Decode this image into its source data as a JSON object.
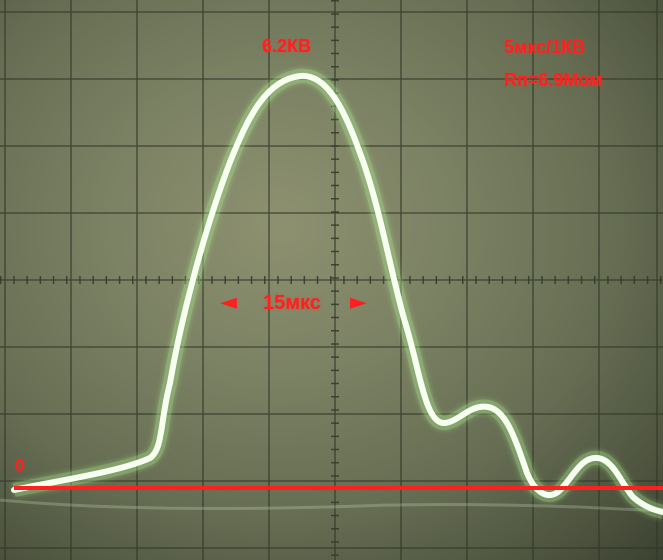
{
  "labels": {
    "peak_voltage": "6.2КВ",
    "timebase_scale": "5мкс/1КВ",
    "resistance": "Rп=6.9Мом",
    "pulse_width": "15мкс",
    "zero": "0"
  },
  "icons": {
    "left_arrow": "◄",
    "right_arrow": "►"
  },
  "colors": {
    "annotation": "#ff1f1f",
    "trace": "#f6fff0",
    "trace_glow": "#b8ff9a",
    "grid": "#2f3626"
  }
}
